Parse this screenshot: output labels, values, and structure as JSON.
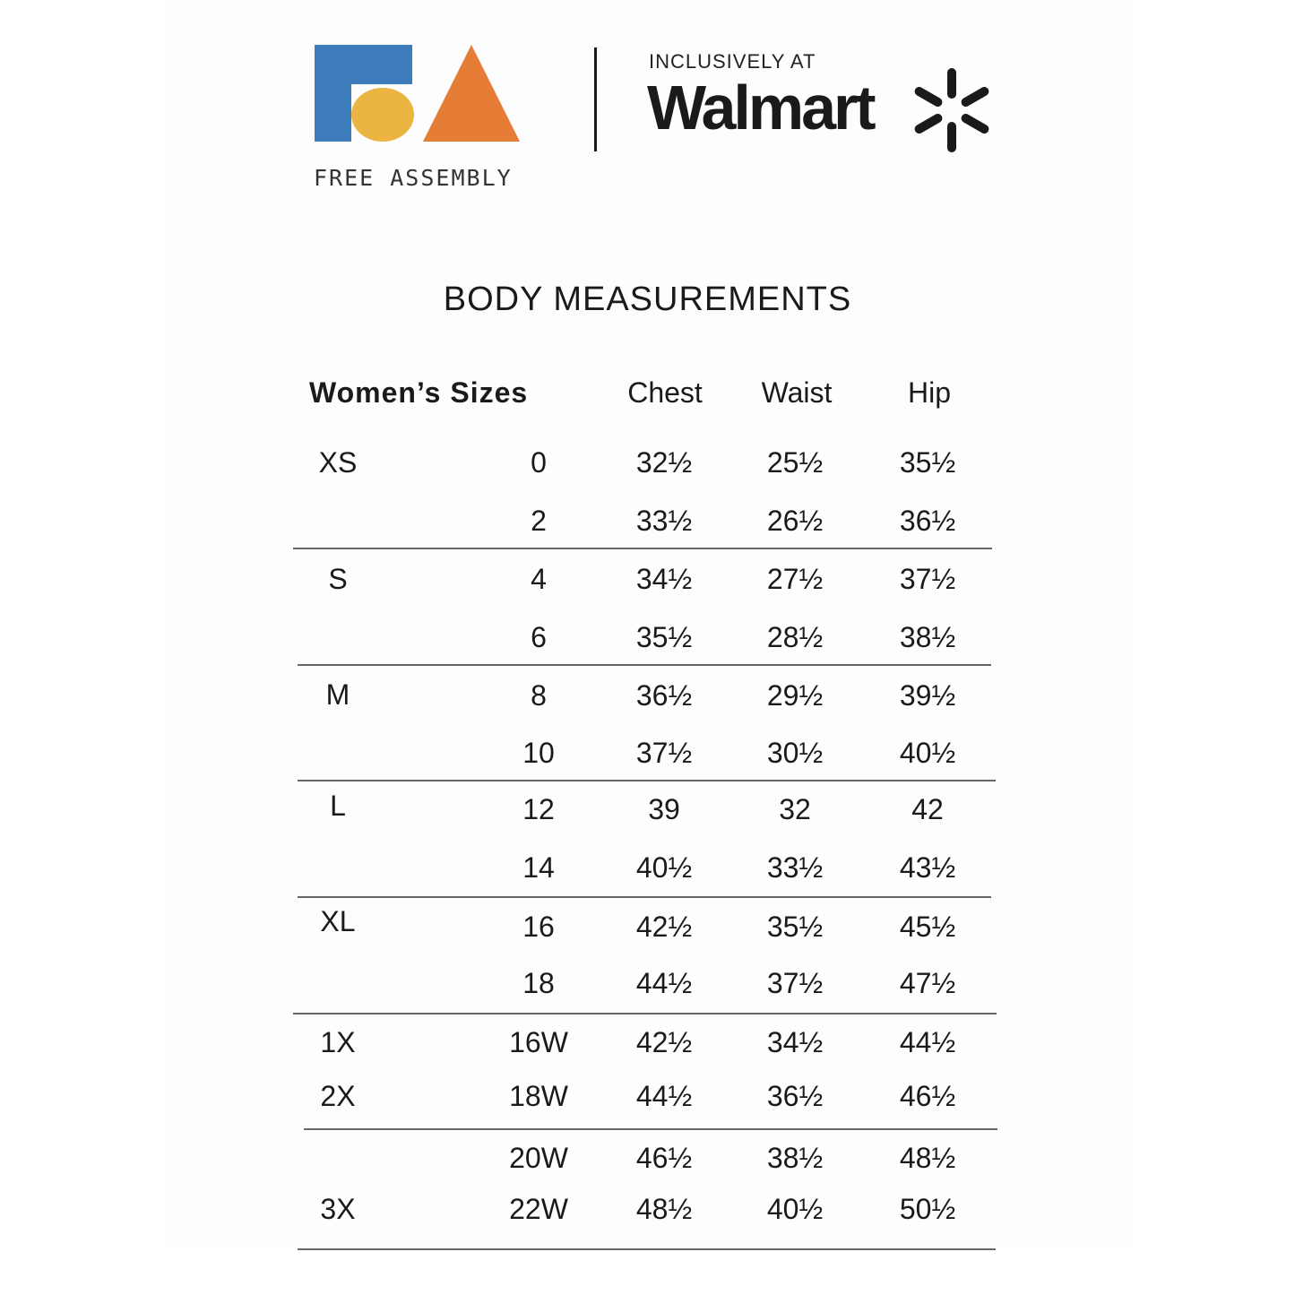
{
  "logo": {
    "brand": "FREE ASSEMBLY",
    "tagline": "INCLUSIVELY AT",
    "retailer": "Walmart",
    "colors": {
      "blue": "#3e7dbb",
      "yellow": "#ecb542",
      "orange": "#e57d36"
    }
  },
  "title": "BODY MEASUREMENTS",
  "table": {
    "headers": {
      "sizes": "Women’s Sizes",
      "chest": "Chest",
      "waist": "Waist",
      "hip": "Hip"
    },
    "rows": [
      {
        "size": "XS",
        "num": "0",
        "chest": "32½",
        "waist": "25½",
        "hip": "35½"
      },
      {
        "size": "",
        "num": "2",
        "chest": "33½",
        "waist": "26½",
        "hip": "36½"
      },
      {
        "size": "S",
        "num": "4",
        "chest": "34½",
        "waist": "27½",
        "hip": "37½"
      },
      {
        "size": "",
        "num": "6",
        "chest": "35½",
        "waist": "28½",
        "hip": "38½"
      },
      {
        "size": "M",
        "num": "8",
        "chest": "36½",
        "waist": "29½",
        "hip": "39½"
      },
      {
        "size": "",
        "num": "10",
        "chest": "37½",
        "waist": "30½",
        "hip": "40½"
      },
      {
        "size": "L",
        "num": "12",
        "chest": "39",
        "waist": "32",
        "hip": "42"
      },
      {
        "size": "",
        "num": "14",
        "chest": "40½",
        "waist": "33½",
        "hip": "43½"
      },
      {
        "size": "XL",
        "num": "16",
        "chest": "42½",
        "waist": "35½",
        "hip": "45½"
      },
      {
        "size": "",
        "num": "18",
        "chest": "44½",
        "waist": "37½",
        "hip": "47½"
      },
      {
        "size": "1X",
        "num": "16W",
        "chest": "42½",
        "waist": "34½",
        "hip": "44½"
      },
      {
        "size": "2X",
        "num": "18W",
        "chest": "44½",
        "waist": "36½",
        "hip": "46½"
      },
      {
        "size": "",
        "num": "20W",
        "chest": "46½",
        "waist": "38½",
        "hip": "48½"
      },
      {
        "size": "3X",
        "num": "22W",
        "chest": "48½",
        "waist": "40½",
        "hip": "50½"
      }
    ]
  }
}
